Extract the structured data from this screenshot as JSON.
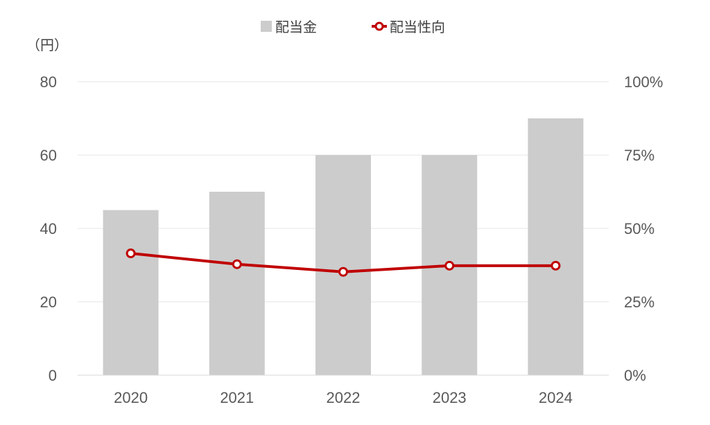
{
  "chart_data": {
    "type": "bar",
    "categories": [
      "2020",
      "2021",
      "2022",
      "2023",
      "2024"
    ],
    "series": [
      {
        "name": "配当金",
        "type": "bar",
        "axis": "left",
        "values": [
          45,
          50,
          60,
          60,
          70
        ],
        "color": "#cccccc"
      },
      {
        "name": "配当性向",
        "type": "line",
        "axis": "right",
        "values": [
          41.5,
          37.8,
          35.2,
          37.3,
          37.3
        ],
        "color": "#c00000"
      }
    ],
    "ylabel": "（円）",
    "ylim": [
      0,
      80
    ],
    "y_ticks": [
      "0",
      "20",
      "40",
      "60",
      "80"
    ],
    "y2lim": [
      0,
      100
    ],
    "y2_ticks": [
      "0%",
      "25%",
      "50%",
      "75%",
      "100%"
    ],
    "grid": true,
    "legend": "top-center"
  }
}
